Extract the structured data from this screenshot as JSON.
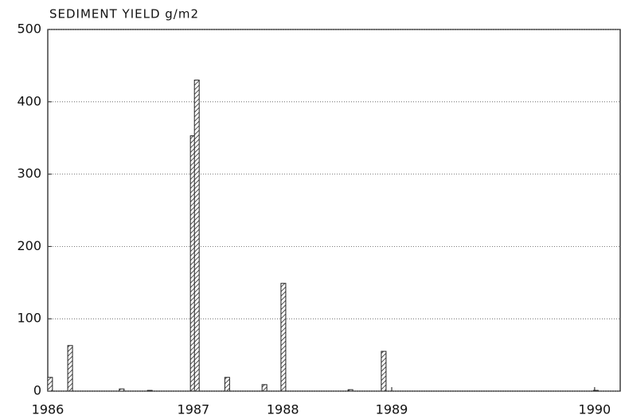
{
  "chart_data": {
    "type": "bar",
    "title": "SEDIMENT YIELD g/m2",
    "x": [
      0.4,
      3.9,
      12.9,
      17.8,
      25.3,
      26.0,
      31.3,
      37.8,
      41.1,
      52.8,
      58.6,
      95.6
    ],
    "values": [
      19,
      63,
      3,
      1,
      353,
      430,
      19,
      9,
      149,
      2,
      55,
      1
    ],
    "color": "#222222",
    "xlim": [
      0,
      100
    ],
    "xticks": [
      {
        "value": 0,
        "label": "1986"
      },
      {
        "value": 25.4,
        "label": "1987"
      },
      {
        "value": 41,
        "label": "1988"
      },
      {
        "value": 60,
        "label": "1989"
      },
      {
        "value": 95.4,
        "label": "1990"
      }
    ],
    "ylim": [
      0,
      500
    ],
    "yticks": [
      0,
      100,
      200,
      300,
      400,
      500
    ],
    "grid": true
  }
}
